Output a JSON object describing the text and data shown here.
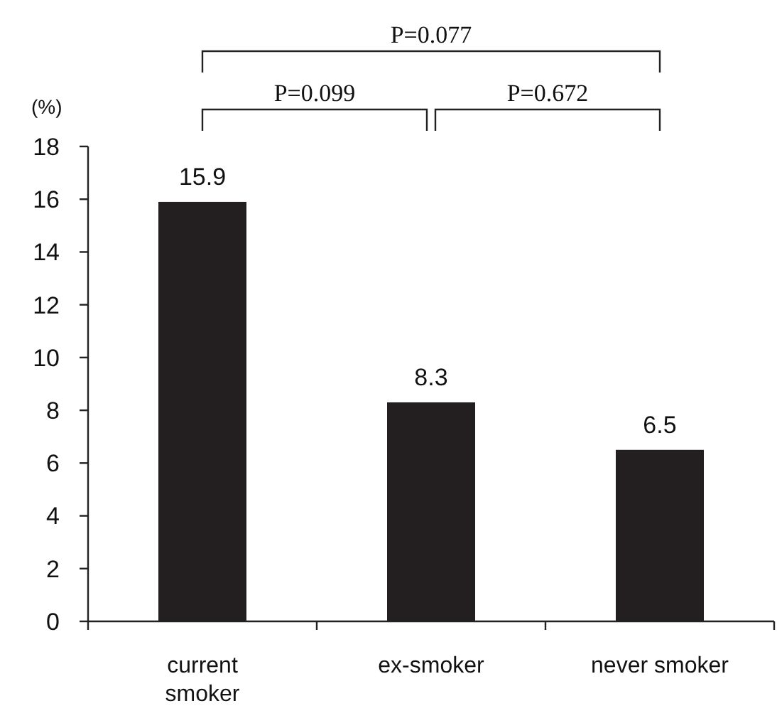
{
  "chart_data": {
    "type": "bar",
    "ylabel": "(%)",
    "categories": [
      "current smoker",
      "ex-smoker",
      "never smoker"
    ],
    "values": [
      15.9,
      8.3,
      6.5
    ],
    "color": "#231f20",
    "ylim": [
      0,
      18
    ],
    "yticks": [
      0,
      2,
      4,
      6,
      8,
      10,
      12,
      14,
      16,
      18
    ],
    "data_labels": true,
    "grid": false,
    "annotations": [
      "P=0.077",
      "P=0.099",
      "P=0.672"
    ]
  }
}
